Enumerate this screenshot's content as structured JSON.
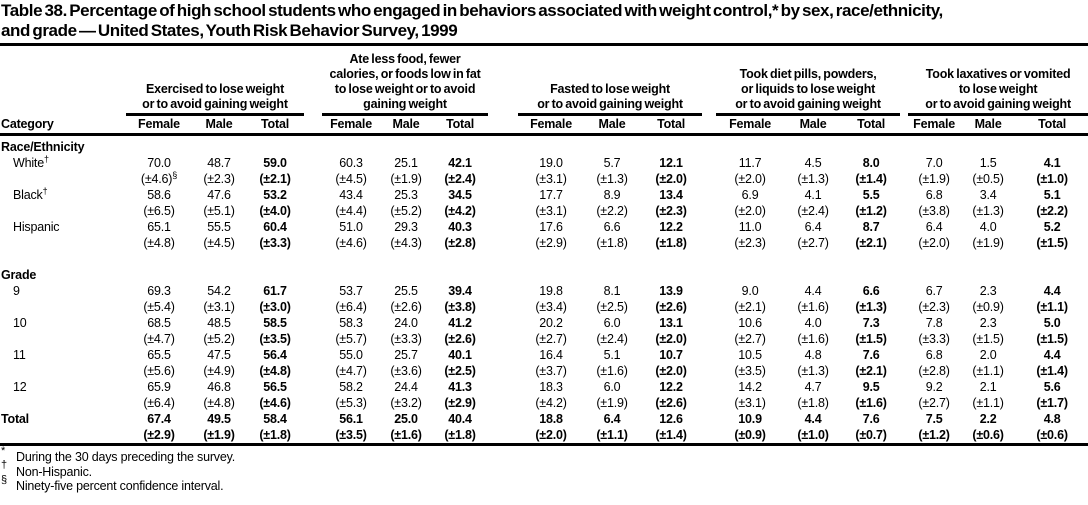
{
  "title": "Table 38. Percentage of high school students who engaged in behaviors associated with weight control,* by sex, race/ethnicity,\nand grade — United States, Youth Risk Behavior Survey, 1999",
  "table": {
    "category_label": "Category",
    "sub_headers": [
      "Female",
      "Male",
      "Total"
    ],
    "groups": [
      {
        "title": "Exercised to lose weight\nor to avoid gaining weight"
      },
      {
        "title": "Ate less food, fewer\ncalories, or foods low in fat\nto lose weight or to avoid\ngaining weight"
      },
      {
        "title": "Fasted to lose weight\nor to avoid gaining weight"
      },
      {
        "title": "Took diet pills, powders,\nor liquids to lose weight\nor to avoid gaining weight"
      },
      {
        "title": "Took laxatives or vomited\nto lose weight\nor to avoid gaining weight"
      }
    ],
    "rows": [
      {
        "kind": "section",
        "label": "Race/Ethnicity"
      },
      {
        "kind": "data",
        "label": "White",
        "sup": "†",
        "indent": true,
        "values": [
          "70.0",
          "48.7",
          "59.0",
          "60.3",
          "25.1",
          "42.1",
          "19.0",
          "5.7",
          "12.1",
          "11.7",
          "4.5",
          "8.0",
          "7.0",
          "1.5",
          "4.1"
        ],
        "cis": [
          "(±4.6)§",
          "(±2.3)",
          "(±2.1)",
          "(±4.5)",
          "(±1.9)",
          "(±2.4)",
          "(±3.1)",
          "(±1.3)",
          "(±2.0)",
          "(±2.0)",
          "(±1.3)",
          "(±1.4)",
          "(±1.9)",
          "(±0.5)",
          "(±1.0)"
        ]
      },
      {
        "kind": "data",
        "label": "Black",
        "sup": "†",
        "indent": true,
        "values": [
          "58.6",
          "47.6",
          "53.2",
          "43.4",
          "25.3",
          "34.5",
          "17.7",
          "8.9",
          "13.4",
          "6.9",
          "4.1",
          "5.5",
          "6.8",
          "3.4",
          "5.1"
        ],
        "cis": [
          "(±6.5)",
          "(±5.1)",
          "(±4.0)",
          "(±4.4)",
          "(±5.2)",
          "(±4.2)",
          "(±3.1)",
          "(±2.2)",
          "(±2.3)",
          "(±2.0)",
          "(±2.4)",
          "(±1.2)",
          "(±3.8)",
          "(±1.3)",
          "(±2.2)"
        ]
      },
      {
        "kind": "data",
        "label": "Hispanic",
        "indent": true,
        "values": [
          "65.1",
          "55.5",
          "60.4",
          "51.0",
          "29.3",
          "40.3",
          "17.6",
          "6.6",
          "12.2",
          "11.0",
          "6.4",
          "8.7",
          "6.4",
          "4.0",
          "5.2"
        ],
        "cis": [
          "(±4.8)",
          "(±4.5)",
          "(±3.3)",
          "(±4.6)",
          "(±4.3)",
          "(±2.8)",
          "(±2.9)",
          "(±1.8)",
          "(±1.8)",
          "(±2.3)",
          "(±2.7)",
          "(±2.1)",
          "(±2.0)",
          "(±1.9)",
          "(±1.5)"
        ]
      },
      {
        "kind": "section",
        "label": "Grade",
        "gap": true
      },
      {
        "kind": "data",
        "label": "9",
        "indent": true,
        "values": [
          "69.3",
          "54.2",
          "61.7",
          "53.7",
          "25.5",
          "39.4",
          "19.8",
          "8.1",
          "13.9",
          "9.0",
          "4.4",
          "6.6",
          "6.7",
          "2.3",
          "4.4"
        ],
        "cis": [
          "(±5.4)",
          "(±3.1)",
          "(±3.0)",
          "(±6.4)",
          "(±2.6)",
          "(±3.8)",
          "(±3.4)",
          "(±2.5)",
          "(±2.6)",
          "(±2.1)",
          "(±1.6)",
          "(±1.3)",
          "(±2.3)",
          "(±0.9)",
          "(±1.1)"
        ]
      },
      {
        "kind": "data",
        "label": "10",
        "indent": true,
        "values": [
          "68.5",
          "48.5",
          "58.5",
          "58.3",
          "24.0",
          "41.2",
          "20.2",
          "6.0",
          "13.1",
          "10.6",
          "4.0",
          "7.3",
          "7.8",
          "2.3",
          "5.0"
        ],
        "cis": [
          "(±4.7)",
          "(±5.2)",
          "(±3.5)",
          "(±5.7)",
          "(±3.3)",
          "(±2.6)",
          "(±2.7)",
          "(±2.4)",
          "(±2.0)",
          "(±2.7)",
          "(±1.6)",
          "(±1.5)",
          "(±3.3)",
          "(±1.5)",
          "(±1.5)"
        ]
      },
      {
        "kind": "data",
        "label": "11",
        "indent": true,
        "values": [
          "65.5",
          "47.5",
          "56.4",
          "55.0",
          "25.7",
          "40.1",
          "16.4",
          "5.1",
          "10.7",
          "10.5",
          "4.8",
          "7.6",
          "6.8",
          "2.0",
          "4.4"
        ],
        "cis": [
          "(±5.6)",
          "(±4.9)",
          "(±4.8)",
          "(±4.7)",
          "(±3.6)",
          "(±2.5)",
          "(±3.7)",
          "(±1.6)",
          "(±2.0)",
          "(±3.5)",
          "(±1.3)",
          "(±2.1)",
          "(±2.8)",
          "(±1.1)",
          "(±1.4)"
        ]
      },
      {
        "kind": "data",
        "label": "12",
        "indent": true,
        "values": [
          "65.9",
          "46.8",
          "56.5",
          "58.2",
          "24.4",
          "41.3",
          "18.3",
          "6.0",
          "12.2",
          "14.2",
          "4.7",
          "9.5",
          "9.2",
          "2.1",
          "5.6"
        ],
        "cis": [
          "(±6.4)",
          "(±4.8)",
          "(±4.6)",
          "(±5.3)",
          "(±3.2)",
          "(±2.9)",
          "(±4.2)",
          "(±1.9)",
          "(±2.6)",
          "(±3.1)",
          "(±1.8)",
          "(±1.6)",
          "(±2.7)",
          "(±1.1)",
          "(±1.7)"
        ]
      },
      {
        "kind": "data",
        "label": "Total",
        "bold": true,
        "values": [
          "67.4",
          "49.5",
          "58.4",
          "56.1",
          "25.0",
          "40.4",
          "18.8",
          "6.4",
          "12.6",
          "10.9",
          "4.4",
          "7.6",
          "7.5",
          "2.2",
          "4.8"
        ],
        "cis": [
          "(±2.9)",
          "(±1.9)",
          "(±1.8)",
          "(±3.5)",
          "(±1.6)",
          "(±1.8)",
          "(±2.0)",
          "(±1.1)",
          "(±1.4)",
          "(±0.9)",
          "(±1.0)",
          "(±0.7)",
          "(±1.2)",
          "(±0.6)",
          "(±0.6)"
        ]
      }
    ]
  },
  "footnotes": [
    {
      "symbol": "*",
      "text": "During the 30 days preceding the survey."
    },
    {
      "symbol": "†",
      "text": "Non-Hispanic."
    },
    {
      "symbol": "§",
      "text": "Ninety-five percent confidence interval."
    }
  ]
}
